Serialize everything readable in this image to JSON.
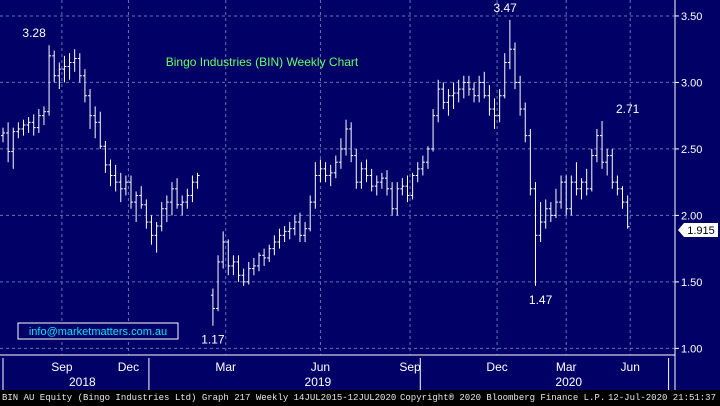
{
  "chart_data": {
    "type": "line",
    "title": "Bingo Industries (BIN) Weekly Chart",
    "ylim": [
      0.95,
      3.62
    ],
    "y_ticks": [
      "1.00",
      "1.50",
      "2.00",
      "2.50",
      "3.00",
      "3.50"
    ],
    "x_tick_labels": [
      "Sep",
      "Dec",
      "Mar",
      "Jun",
      "Sep",
      "Dec",
      "Mar",
      "Jun"
    ],
    "x_year_labels": [
      "2018",
      "2019",
      "2020"
    ],
    "last_price_label": "1.915",
    "annotations": [
      {
        "text": "3.28",
        "value": 3.28
      },
      {
        "text": "1.17",
        "value": 1.17
      },
      {
        "text": "3.47",
        "value": 3.47
      },
      {
        "text": "1.47",
        "value": 1.47
      },
      {
        "text": "2.71",
        "value": 2.71
      }
    ],
    "series": [
      {
        "values": [
          [
            2.6,
            2.66,
            2.55,
            2.62
          ],
          [
            2.62,
            2.7,
            2.4,
            2.48
          ],
          [
            2.48,
            2.66,
            2.35,
            2.63
          ],
          [
            2.63,
            2.7,
            2.58,
            2.65
          ],
          [
            2.65,
            2.72,
            2.6,
            2.68
          ],
          [
            2.68,
            2.74,
            2.62,
            2.7
          ],
          [
            2.7,
            2.76,
            2.6,
            2.66
          ],
          [
            2.66,
            2.8,
            2.62,
            2.75
          ],
          [
            2.75,
            2.82,
            2.68,
            2.78
          ],
          [
            2.78,
            3.28,
            2.75,
            3.2
          ],
          [
            3.2,
            3.24,
            3.0,
            3.05
          ],
          [
            3.05,
            3.15,
            2.95,
            3.1
          ],
          [
            3.1,
            3.2,
            3.0,
            3.12
          ],
          [
            3.12,
            3.22,
            3.02,
            3.15
          ],
          [
            3.15,
            3.25,
            3.08,
            3.18
          ],
          [
            3.18,
            3.22,
            3.0,
            3.05
          ],
          [
            3.05,
            3.1,
            2.85,
            2.9
          ],
          [
            2.9,
            2.95,
            2.65,
            2.75
          ],
          [
            2.75,
            2.82,
            2.58,
            2.7
          ],
          [
            2.7,
            2.78,
            2.5,
            2.52
          ],
          [
            2.52,
            2.56,
            2.32,
            2.38
          ],
          [
            2.38,
            2.42,
            2.22,
            2.3
          ],
          [
            2.3,
            2.38,
            2.18,
            2.25
          ],
          [
            2.25,
            2.32,
            2.1,
            2.2
          ],
          [
            2.2,
            2.3,
            2.15,
            2.25
          ],
          [
            2.25,
            2.3,
            2.05,
            2.1
          ],
          [
            2.1,
            2.18,
            1.95,
            2.15
          ],
          [
            2.15,
            2.22,
            2.05,
            2.08
          ],
          [
            2.08,
            2.12,
            1.9,
            1.95
          ],
          [
            1.95,
            2.0,
            1.78,
            1.85
          ],
          [
            1.85,
            1.95,
            1.72,
            1.92
          ],
          [
            1.92,
            2.1,
            1.88,
            2.05
          ],
          [
            2.05,
            2.15,
            1.95,
            2.1
          ],
          [
            2.1,
            2.25,
            2.0,
            2.2
          ],
          [
            2.2,
            2.28,
            2.05,
            2.08
          ],
          [
            2.08,
            2.15,
            2.0,
            2.1
          ],
          [
            2.1,
            2.2,
            2.05,
            2.15
          ],
          [
            2.15,
            2.3,
            2.1,
            2.25
          ],
          [
            2.25,
            2.32,
            2.2,
            2.3
          ],
          null,
          null,
          [
            1.4,
            1.45,
            1.17,
            1.3
          ],
          [
            1.3,
            1.7,
            1.28,
            1.65
          ],
          [
            1.65,
            1.88,
            1.6,
            1.8
          ],
          [
            1.8,
            1.82,
            1.55,
            1.62
          ],
          [
            1.62,
            1.7,
            1.55,
            1.65
          ],
          [
            1.65,
            1.7,
            1.5,
            1.55
          ],
          [
            1.55,
            1.6,
            1.47,
            1.5
          ],
          [
            1.5,
            1.65,
            1.48,
            1.6
          ],
          [
            1.6,
            1.68,
            1.55,
            1.62
          ],
          [
            1.62,
            1.72,
            1.58,
            1.7
          ],
          [
            1.7,
            1.75,
            1.62,
            1.68
          ],
          [
            1.68,
            1.78,
            1.65,
            1.75
          ],
          [
            1.75,
            1.85,
            1.7,
            1.8
          ],
          [
            1.8,
            1.9,
            1.75,
            1.85
          ],
          [
            1.85,
            1.92,
            1.8,
            1.88
          ],
          [
            1.88,
            1.95,
            1.82,
            1.9
          ],
          [
            1.9,
            2.0,
            1.85,
            1.95
          ],
          [
            1.95,
            2.02,
            1.8,
            1.85
          ],
          [
            1.85,
            1.95,
            1.8,
            1.9
          ],
          [
            1.9,
            2.15,
            1.88,
            2.1
          ],
          [
            2.1,
            2.4,
            2.05,
            2.3
          ],
          [
            2.3,
            2.42,
            2.25,
            2.35
          ],
          [
            2.35,
            2.4,
            2.25,
            2.3
          ],
          [
            2.3,
            2.38,
            2.22,
            2.32
          ],
          [
            2.32,
            2.45,
            2.28,
            2.4
          ],
          [
            2.4,
            2.58,
            2.35,
            2.5
          ],
          [
            2.5,
            2.72,
            2.45,
            2.65
          ],
          [
            2.65,
            2.7,
            2.4,
            2.45
          ],
          [
            2.45,
            2.5,
            2.2,
            2.25
          ],
          [
            2.25,
            2.4,
            2.2,
            2.35
          ],
          [
            2.35,
            2.42,
            2.25,
            2.3
          ],
          [
            2.3,
            2.35,
            2.18,
            2.22
          ],
          [
            2.22,
            2.3,
            2.15,
            2.25
          ],
          [
            2.25,
            2.32,
            2.2,
            2.28
          ],
          [
            2.28,
            2.34,
            2.15,
            2.2
          ],
          [
            2.2,
            2.25,
            2.0,
            2.05
          ],
          [
            2.05,
            2.25,
            2.0,
            2.2
          ],
          [
            2.2,
            2.28,
            2.15,
            2.22
          ],
          [
            2.22,
            2.3,
            2.1,
            2.15
          ],
          [
            2.15,
            2.32,
            2.12,
            2.3
          ],
          [
            2.3,
            2.4,
            2.25,
            2.35
          ],
          [
            2.35,
            2.45,
            2.3,
            2.4
          ],
          [
            2.4,
            2.52,
            2.35,
            2.5
          ],
          [
            2.5,
            2.8,
            2.48,
            2.75
          ],
          [
            2.75,
            3.02,
            2.7,
            2.95
          ],
          [
            2.95,
            3.0,
            2.8,
            2.85
          ],
          [
            2.85,
            2.95,
            2.75,
            2.9
          ],
          [
            2.9,
            3.0,
            2.8,
            2.92
          ],
          [
            2.92,
            3.02,
            2.85,
            2.95
          ],
          [
            2.95,
            3.05,
            2.88,
            3.0
          ],
          [
            3.0,
            3.05,
            2.9,
            2.95
          ],
          [
            2.95,
            3.0,
            2.85,
            2.9
          ],
          [
            2.9,
            3.05,
            2.85,
            3.0
          ],
          [
            3.0,
            3.08,
            2.88,
            2.9
          ],
          [
            2.9,
            2.98,
            2.75,
            2.8
          ],
          [
            2.8,
            2.88,
            2.65,
            2.75
          ],
          [
            2.75,
            2.95,
            2.7,
            2.9
          ],
          [
            2.9,
            3.22,
            2.88,
            3.15
          ],
          [
            3.15,
            3.47,
            3.1,
            3.25
          ],
          [
            3.25,
            3.3,
            2.95,
            3.0
          ],
          [
            3.0,
            3.05,
            2.75,
            2.8
          ],
          [
            2.8,
            2.85,
            2.55,
            2.6
          ],
          [
            2.6,
            2.65,
            2.15,
            2.2
          ],
          [
            2.2,
            2.25,
            1.47,
            1.85
          ],
          [
            1.85,
            2.1,
            1.8,
            1.95
          ],
          [
            1.95,
            2.12,
            1.9,
            2.05
          ],
          [
            2.05,
            2.1,
            1.95,
            2.0
          ],
          [
            2.0,
            2.2,
            1.98,
            2.1
          ],
          [
            2.1,
            2.3,
            2.05,
            2.25
          ],
          [
            2.25,
            2.3,
            2.0,
            2.05
          ],
          [
            2.05,
            2.3,
            2.0,
            2.25
          ],
          [
            2.25,
            2.4,
            2.15,
            2.2
          ],
          [
            2.2,
            2.28,
            2.12,
            2.25
          ],
          [
            2.25,
            2.35,
            2.15,
            2.2
          ],
          [
            2.2,
            2.5,
            2.18,
            2.45
          ],
          [
            2.45,
            2.65,
            2.4,
            2.6
          ],
          [
            2.6,
            2.71,
            2.35,
            2.4
          ],
          [
            2.4,
            2.5,
            2.3,
            2.45
          ],
          [
            2.45,
            2.5,
            2.2,
            2.25
          ],
          [
            2.25,
            2.3,
            2.15,
            2.2
          ],
          [
            2.2,
            2.22,
            2.05,
            2.1
          ],
          [
            2.1,
            2.15,
            1.9,
            1.915
          ]
        ]
      }
    ]
  },
  "watermark": "info@marketmatters.com.au",
  "footer": {
    "left": "BIN AU Equity (Bingo Industries Ltd) Graph 217  Weekly 14JUL2015-12JUL2020",
    "center": "Copyright® 2020 Bloomberg Finance L.P.",
    "right": "12-Jul-2020 21:51:37"
  },
  "colors": {
    "background": "#000066",
    "grid": "#5a78b8",
    "bars": "#ffffff",
    "title": "#66ff66",
    "axis_text": "#ffffff"
  }
}
